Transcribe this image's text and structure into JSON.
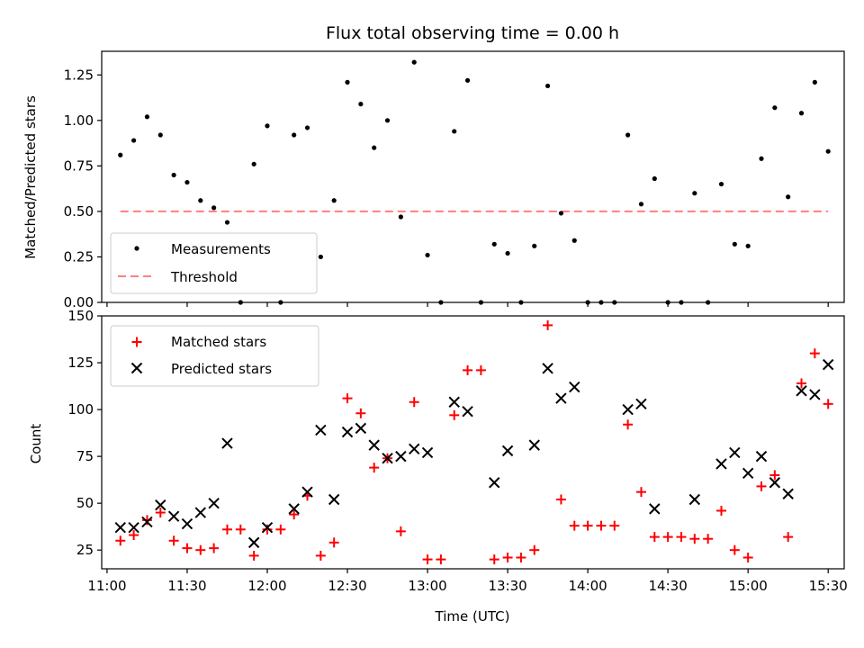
{
  "chart_data": [
    {
      "type": "scatter",
      "title": "Flux total observing time = 0.00 h",
      "xlabel": "",
      "ylabel": "Matched/Predicted stars",
      "ylim": [
        0,
        1.38
      ],
      "yticks": [
        "0.00",
        "0.25",
        "0.50",
        "0.75",
        "1.00",
        "1.25"
      ],
      "ytick_values": [
        0,
        0.25,
        0.5,
        0.75,
        1.0,
        1.25
      ],
      "threshold": 0.5,
      "legend": {
        "placement": "lower-left",
        "entries": [
          "Measurements",
          "Threshold"
        ]
      },
      "colors": {
        "measurements": "#000000",
        "threshold": "#ff7f7f"
      },
      "series": [
        {
          "name": "Measurements",
          "x": [
            "11:05",
            "11:10",
            "11:15",
            "11:20",
            "11:25",
            "11:30",
            "11:35",
            "11:40",
            "11:45",
            "11:50",
            "11:55",
            "12:00",
            "12:05",
            "12:10",
            "12:15",
            "12:20",
            "12:25",
            "12:30",
            "12:35",
            "12:40",
            "12:45",
            "12:50",
            "12:55",
            "13:00",
            "13:05",
            "13:10",
            "13:15",
            "13:20",
            "13:25",
            "13:30",
            "13:35",
            "13:40",
            "13:45",
            "13:50",
            "13:55",
            "14:00",
            "14:05",
            "14:10",
            "14:15",
            "14:20",
            "14:25",
            "14:30",
            "14:35",
            "14:40",
            "14:45",
            "14:50",
            "14:55",
            "15:00",
            "15:05",
            "15:10",
            "15:15",
            "15:20",
            "15:25",
            "15:30"
          ],
          "y": [
            0.81,
            0.89,
            1.02,
            0.92,
            0.7,
            0.66,
            0.56,
            0.52,
            0.44,
            0.0,
            0.76,
            0.97,
            0.0,
            0.92,
            0.96,
            0.25,
            0.56,
            1.21,
            1.09,
            0.85,
            1.0,
            0.47,
            1.32,
            0.26,
            0.0,
            0.94,
            1.22,
            0.0,
            0.32,
            0.27,
            0.0,
            0.31,
            1.19,
            0.49,
            0.34,
            0.0,
            0.0,
            0.0,
            0.92,
            0.54,
            0.68,
            0.0,
            0.0,
            0.6,
            0.0,
            0.65,
            0.32,
            0.31,
            0.79,
            1.07,
            0.58,
            1.04,
            1.21,
            0.83
          ]
        }
      ]
    },
    {
      "type": "scatter",
      "title": "",
      "xlabel": "Time (UTC)",
      "ylabel": "Count",
      "ylim": [
        15,
        150
      ],
      "yticks": [
        "25",
        "50",
        "75",
        "100",
        "125",
        "150"
      ],
      "ytick_values": [
        25,
        50,
        75,
        100,
        125,
        150
      ],
      "xticks": [
        "11:00",
        "11:30",
        "12:00",
        "12:30",
        "13:00",
        "13:30",
        "14:00",
        "14:30",
        "15:00",
        "15:30"
      ],
      "xlim": [
        "10:58",
        "15:36"
      ],
      "legend": {
        "placement": "top-left",
        "entries": [
          "Matched stars",
          "Predicted stars"
        ]
      },
      "colors": {
        "matched": "#ff0000",
        "predicted": "#000000"
      },
      "x": [
        "11:05",
        "11:10",
        "11:15",
        "11:20",
        "11:25",
        "11:30",
        "11:35",
        "11:40",
        "11:45",
        "11:50",
        "11:55",
        "12:00",
        "12:05",
        "12:10",
        "12:15",
        "12:20",
        "12:25",
        "12:30",
        "12:35",
        "12:40",
        "12:45",
        "12:50",
        "12:55",
        "13:00",
        "13:05",
        "13:10",
        "13:15",
        "13:20",
        "13:25",
        "13:30",
        "13:35",
        "13:40",
        "13:45",
        "13:50",
        "13:55",
        "14:00",
        "14:05",
        "14:10",
        "14:15",
        "14:20",
        "14:25",
        "14:30",
        "14:35",
        "14:40",
        "14:45",
        "14:50",
        "14:55",
        "15:00",
        "15:05",
        "15:10",
        "15:15",
        "15:20",
        "15:25",
        "15:30"
      ],
      "series": [
        {
          "name": "Matched stars",
          "y": [
            30,
            33,
            41,
            45,
            30,
            26,
            25,
            26,
            36,
            36,
            22,
            36,
            36,
            44,
            54,
            22,
            29,
            106,
            98,
            69,
            74,
            35,
            104,
            20,
            20,
            97,
            121,
            121,
            20,
            21,
            21,
            25,
            145,
            52,
            38,
            38,
            38,
            38,
            92,
            56,
            32,
            32,
            32,
            31,
            31,
            46,
            25,
            21,
            59,
            65,
            32,
            114,
            130,
            103
          ]
        },
        {
          "name": "Predicted stars",
          "y": [
            37,
            37,
            40,
            49,
            43,
            39,
            45,
            50,
            82,
            null,
            29,
            37,
            null,
            47,
            56,
            89,
            52,
            88,
            90,
            81,
            74,
            75,
            79,
            77,
            null,
            104,
            99,
            null,
            61,
            78,
            null,
            81,
            122,
            106,
            112,
            null,
            null,
            null,
            100,
            103,
            47,
            null,
            null,
            52,
            null,
            71,
            77,
            66,
            75,
            61,
            55,
            110,
            108,
            124
          ]
        }
      ]
    }
  ]
}
